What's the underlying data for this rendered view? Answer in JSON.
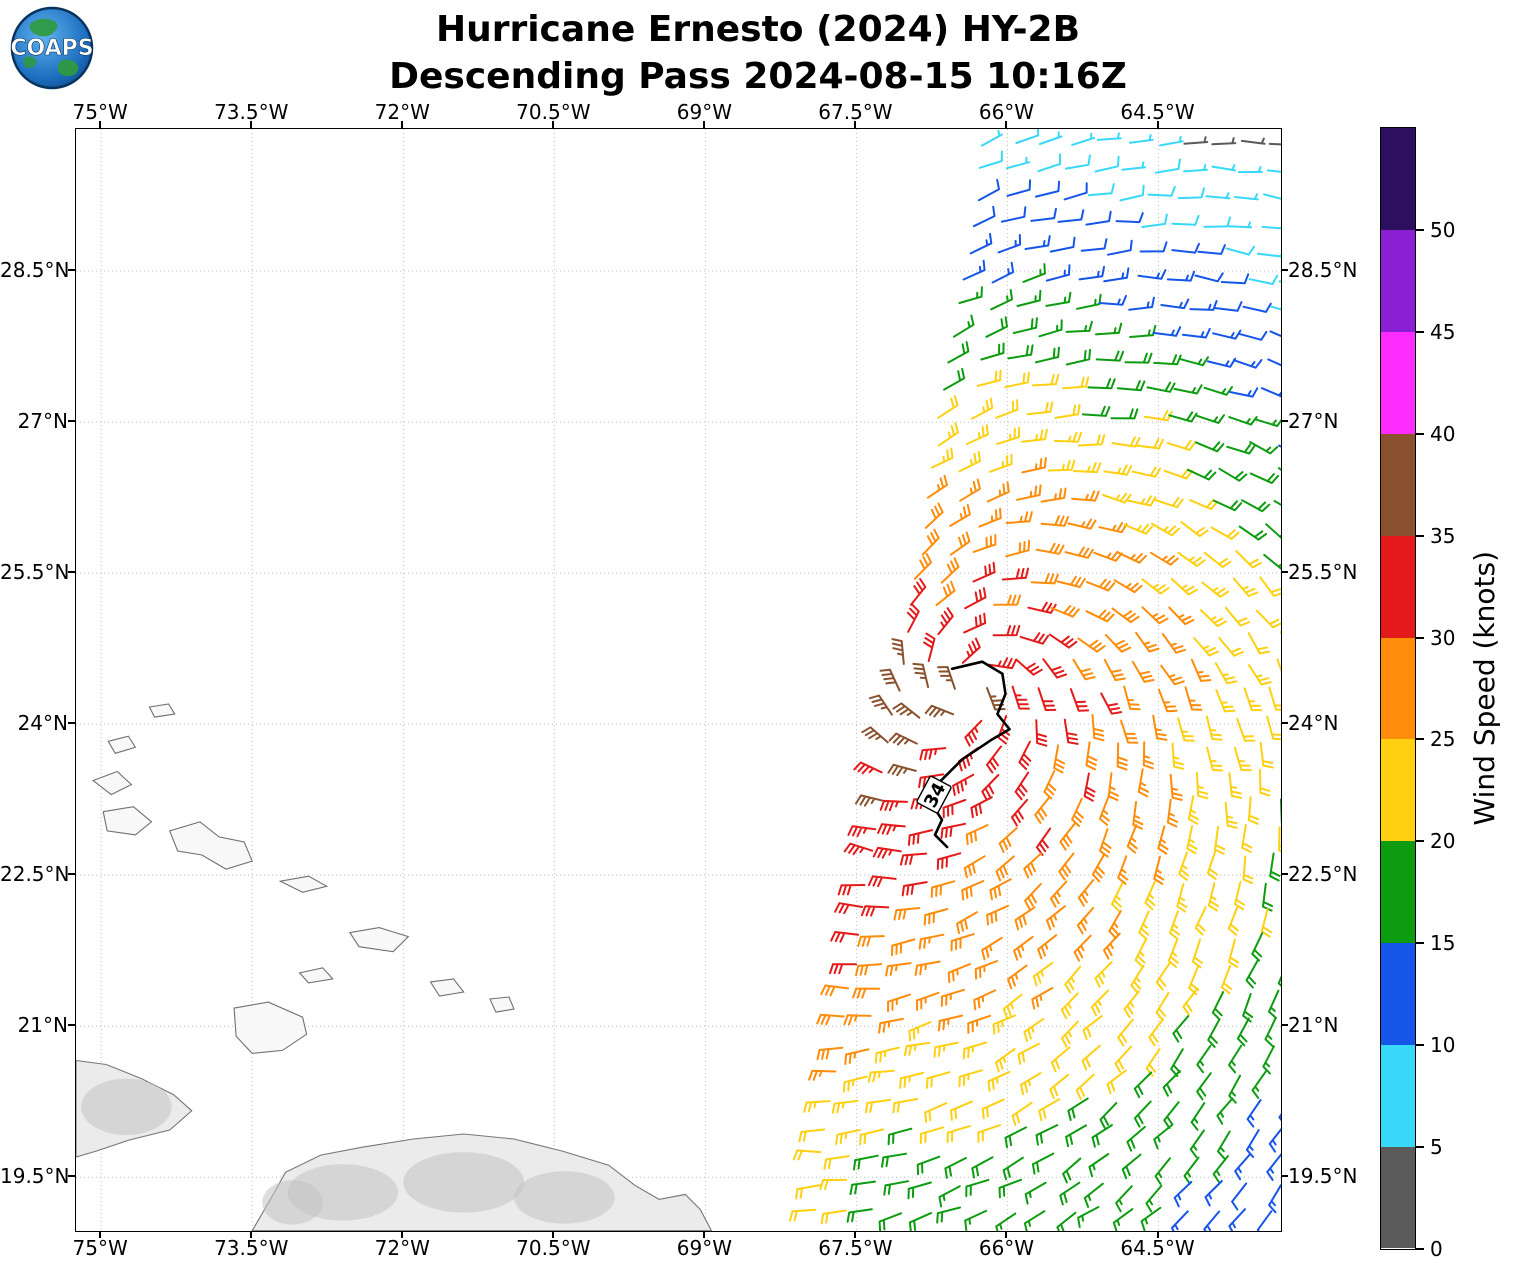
{
  "logo": {
    "text": "COAPS"
  },
  "title": {
    "line1": "Hurricane Ernesto (2024) HY-2B",
    "line2": "Descending Pass 2024-08-15 10:16Z"
  },
  "chart_data": {
    "type": "scatter",
    "subtype": "wind-barb-satellite-swath-map",
    "title": "Hurricane Ernesto (2024) HY-2B — Descending Pass 2024-08-15 10:16Z",
    "x_tick_labels": [
      "75°W",
      "73.5°W",
      "72°W",
      "70.5°W",
      "69°W",
      "67.5°W",
      "66°W",
      "64.5°W"
    ],
    "x_tick_values": [
      -75,
      -73.5,
      -72,
      -70.5,
      -69,
      -67.5,
      -66,
      -64.5
    ],
    "y_tick_labels": [
      "28.5°N",
      "27°N",
      "25.5°N",
      "24°N",
      "22.5°N",
      "21°N",
      "19.5°N"
    ],
    "y_tick_values": [
      28.5,
      27,
      25.5,
      24,
      22.5,
      21,
      19.5
    ],
    "xlim": [
      -75.25,
      -63.28
    ],
    "ylim": [
      18.97,
      29.91
    ],
    "grid": "dotted",
    "colorbar": {
      "label": "Wind Speed (knots)",
      "ticks": [
        0,
        5,
        10,
        15,
        20,
        25,
        30,
        35,
        40,
        45,
        50
      ],
      "vmin": 0,
      "vmax": 55,
      "band_colors_low_to_high": [
        "#5a5a5a",
        "#38d8f8",
        "#1555e8",
        "#0d9c10",
        "#ffd012",
        "#ff8c0a",
        "#e41a1a",
        "#8a512e",
        "#ff2cff",
        "#8a1fd4",
        "#2c0f5e"
      ]
    },
    "storm": {
      "name": "Ernesto",
      "contour_label": "34",
      "label_lonlat": [
        -66.73,
        23.3
      ],
      "label_rotation_deg": -62,
      "track_34kt_contour": [
        [
          -66.55,
          24.55
        ],
        [
          -66.25,
          24.62
        ],
        [
          -66.05,
          24.5
        ],
        [
          -66.02,
          24.3
        ],
        [
          -66.1,
          24.1
        ],
        [
          -65.98,
          23.95
        ],
        [
          -66.15,
          23.85
        ],
        [
          -66.45,
          23.65
        ],
        [
          -66.7,
          23.4
        ],
        [
          -66.75,
          23.2
        ],
        [
          -66.65,
          23.05
        ],
        [
          -66.72,
          22.9
        ],
        [
          -66.6,
          22.78
        ]
      ]
    },
    "swath": {
      "lat_top": 29.78,
      "lat_bottom": 19.02,
      "lat_top_ref": 29.9,
      "row_step": 0.272,
      "col_step": 0.285,
      "left_lon_top": -66.2,
      "left_slope": 0.16,
      "right_lon": -63.15
    },
    "wind_model": {
      "center": {
        "lon": -66.35,
        "lat": 24.35
      },
      "aniso": {
        "east": 1.15,
        "west": 0.78,
        "north": 1.18,
        "south": 0.8
      },
      "profile": [
        [
          1.4,
          34.5,
          3.5
        ],
        [
          2.6,
          29.6,
          4.2
        ],
        [
          99,
          24.56,
          4.6
        ]
      ],
      "edge_boost": 4.5,
      "edge_sigma": 0.5,
      "inflow": 0.4,
      "clamp": [
        5.5,
        38
      ],
      "barb_full_kt": 10,
      "barb_half_kt": 5
    },
    "sample_points": [
      {
        "lon": -65.0,
        "lat": 29.6,
        "speed_kt": 7,
        "band": "5-10 cyan"
      },
      {
        "lon": -65.2,
        "lat": 28.5,
        "speed_kt": 12,
        "band": "10-15 blue"
      },
      {
        "lon": -64.3,
        "lat": 27.5,
        "speed_kt": 17,
        "band": "15-20 green"
      },
      {
        "lon": -65.8,
        "lat": 26.8,
        "speed_kt": 23,
        "band": "20-25 yellow"
      },
      {
        "lon": -66.0,
        "lat": 25.8,
        "speed_kt": 27,
        "band": "25-30 orange"
      },
      {
        "lon": -66.2,
        "lat": 24.3,
        "speed_kt": 33,
        "band": "30-35 red"
      },
      {
        "lon": -67.0,
        "lat": 23.4,
        "speed_kt": 36,
        "band": "35-40 brown (west edge of swath)"
      },
      {
        "lon": -66.9,
        "lat": 21.5,
        "speed_kt": 28,
        "band": "25-30 orange"
      },
      {
        "lon": -67.6,
        "lat": 19.5,
        "speed_kt": 22,
        "band": "20-25 yellow"
      },
      {
        "lon": -64.2,
        "lat": 20.5,
        "speed_kt": 17,
        "band": "15-20 green"
      }
    ],
    "basemap": {
      "land": [
        {
          "name": "eastern-cuba",
          "terrain": true,
          "pts": [
            [
              -75.25,
              20.66
            ],
            [
              -74.95,
              20.62
            ],
            [
              -74.6,
              20.48
            ],
            [
              -74.28,
              20.32
            ],
            [
              -74.1,
              20.16
            ],
            [
              -74.32,
              19.97
            ],
            [
              -74.72,
              19.87
            ],
            [
              -75.05,
              19.76
            ],
            [
              -75.25,
              19.7
            ]
          ]
        },
        {
          "name": "hispaniola",
          "terrain": true,
          "pts": [
            [
              -73.5,
              18.97
            ],
            [
              -73.32,
              19.28
            ],
            [
              -73.17,
              19.55
            ],
            [
              -72.82,
              19.72
            ],
            [
              -72.4,
              19.8
            ],
            [
              -71.9,
              19.88
            ],
            [
              -71.4,
              19.93
            ],
            [
              -70.9,
              19.88
            ],
            [
              -70.42,
              19.76
            ],
            [
              -69.96,
              19.62
            ],
            [
              -69.7,
              19.42
            ],
            [
              -69.46,
              19.28
            ],
            [
              -69.2,
              19.33
            ],
            [
              -69.05,
              19.18
            ],
            [
              -68.94,
              18.97
            ]
          ]
        }
      ],
      "islands": [
        [
          [
            -74.52,
            24.17
          ],
          [
            -74.33,
            24.2
          ],
          [
            -74.27,
            24.1
          ],
          [
            -74.47,
            24.07
          ]
        ],
        [
          [
            -74.93,
            23.83
          ],
          [
            -74.73,
            23.88
          ],
          [
            -74.66,
            23.77
          ],
          [
            -74.86,
            23.71
          ]
        ],
        [
          [
            -75.08,
            23.44
          ],
          [
            -74.84,
            23.53
          ],
          [
            -74.7,
            23.4
          ],
          [
            -74.9,
            23.3
          ]
        ],
        [
          [
            -74.98,
            23.13
          ],
          [
            -74.68,
            23.18
          ],
          [
            -74.5,
            23.03
          ],
          [
            -74.66,
            22.9
          ],
          [
            -74.94,
            22.94
          ]
        ],
        [
          [
            -74.32,
            22.94
          ],
          [
            -74.02,
            23.03
          ],
          [
            -73.83,
            22.88
          ],
          [
            -73.58,
            22.83
          ],
          [
            -73.5,
            22.64
          ],
          [
            -73.76,
            22.56
          ],
          [
            -74.0,
            22.7
          ],
          [
            -74.24,
            22.74
          ]
        ],
        [
          [
            -73.22,
            22.44
          ],
          [
            -72.94,
            22.49
          ],
          [
            -72.76,
            22.39
          ],
          [
            -73.0,
            22.33
          ]
        ],
        [
          [
            -72.53,
            21.93
          ],
          [
            -72.24,
            21.98
          ],
          [
            -71.95,
            21.89
          ],
          [
            -72.1,
            21.74
          ],
          [
            -72.44,
            21.79
          ]
        ],
        [
          [
            -73.03,
            21.53
          ],
          [
            -72.8,
            21.58
          ],
          [
            -72.7,
            21.47
          ],
          [
            -72.94,
            21.43
          ]
        ],
        [
          [
            -71.73,
            21.44
          ],
          [
            -71.5,
            21.47
          ],
          [
            -71.4,
            21.34
          ],
          [
            -71.64,
            21.3
          ]
        ],
        [
          [
            -71.14,
            21.27
          ],
          [
            -70.95,
            21.29
          ],
          [
            -70.9,
            21.17
          ],
          [
            -71.08,
            21.14
          ]
        ],
        [
          [
            -73.68,
            21.18
          ],
          [
            -73.34,
            21.24
          ],
          [
            -73.0,
            21.09
          ],
          [
            -72.96,
            20.92
          ],
          [
            -73.2,
            20.76
          ],
          [
            -73.5,
            20.73
          ],
          [
            -73.66,
            20.9
          ]
        ]
      ],
      "terrain_blobs": [
        [
          -74.75,
          20.2,
          0.45,
          0.28
        ],
        [
          -72.6,
          19.35,
          0.55,
          0.28
        ],
        [
          -71.4,
          19.45,
          0.6,
          0.3
        ],
        [
          -70.4,
          19.3,
          0.5,
          0.26
        ],
        [
          -73.1,
          19.25,
          0.3,
          0.22
        ]
      ]
    }
  }
}
